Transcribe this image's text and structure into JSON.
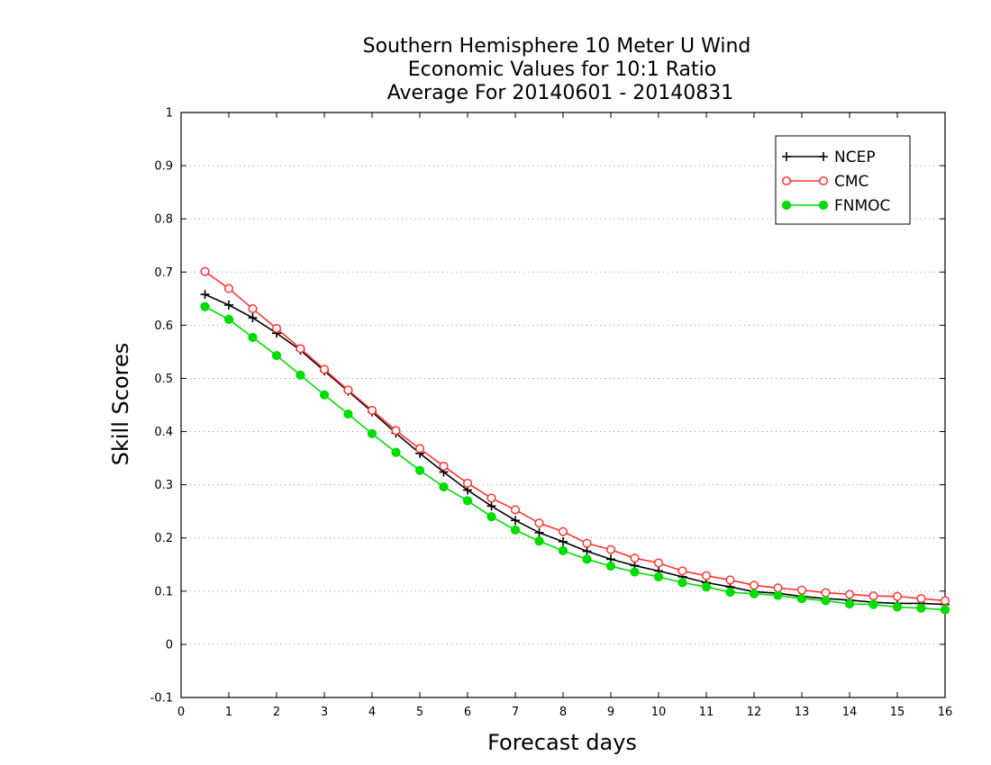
{
  "chart_data": {
    "type": "line",
    "title": [
      "Southern Hemisphere 10 Meter U Wind",
      "Economic Values for 10:1 Ratio",
      "Average For 20140601 - 20140831"
    ],
    "xlabel": "Forecast days",
    "ylabel": "Skill Scores",
    "xlim": [
      0,
      16
    ],
    "ylim": [
      -0.1,
      1
    ],
    "xticks": [
      "0",
      "1",
      "2",
      "3",
      "4",
      "5",
      "6",
      "7",
      "8",
      "9",
      "10",
      "11",
      "12",
      "13",
      "14",
      "15",
      "16"
    ],
    "yticks": [
      "-0.1",
      "0",
      "0.1",
      "0.2",
      "0.3",
      "0.4",
      "0.5",
      "0.6",
      "0.7",
      "0.8",
      "0.9",
      "1"
    ],
    "grid": "horizontal dotted",
    "legend_position": "top-right",
    "x": [
      0.5,
      1,
      1.5,
      2,
      2.5,
      3,
      3.5,
      4,
      4.5,
      5,
      5.5,
      6,
      6.5,
      7,
      7.5,
      8,
      8.5,
      9,
      9.5,
      10,
      10.5,
      11,
      11.5,
      12,
      12.5,
      13,
      13.5,
      14,
      14.5,
      15,
      15.5,
      16
    ],
    "series": [
      {
        "name": "NCEP",
        "color": "#000000",
        "marker": "plus",
        "values": [
          0.658,
          0.638,
          0.614,
          0.585,
          0.553,
          0.514,
          0.476,
          0.437,
          0.397,
          0.359,
          0.324,
          0.29,
          0.26,
          0.233,
          0.21,
          0.193,
          0.175,
          0.16,
          0.148,
          0.138,
          0.127,
          0.116,
          0.108,
          0.099,
          0.096,
          0.09,
          0.086,
          0.083,
          0.079,
          0.077,
          0.077,
          0.075
        ]
      },
      {
        "name": "CMC",
        "color": "#ff3333",
        "marker": "open-circle",
        "values": [
          0.701,
          0.669,
          0.631,
          0.594,
          0.556,
          0.517,
          0.478,
          0.44,
          0.402,
          0.368,
          0.335,
          0.303,
          0.275,
          0.253,
          0.228,
          0.212,
          0.19,
          0.178,
          0.162,
          0.153,
          0.138,
          0.129,
          0.121,
          0.111,
          0.106,
          0.102,
          0.097,
          0.094,
          0.091,
          0.09,
          0.086,
          0.082
        ]
      },
      {
        "name": "FNMOC",
        "color": "#00dd00",
        "marker": "filled-circle",
        "values": [
          0.635,
          0.611,
          0.577,
          0.543,
          0.506,
          0.469,
          0.433,
          0.396,
          0.361,
          0.327,
          0.296,
          0.27,
          0.24,
          0.215,
          0.194,
          0.176,
          0.16,
          0.147,
          0.136,
          0.127,
          0.116,
          0.108,
          0.098,
          0.095,
          0.092,
          0.086,
          0.082,
          0.076,
          0.075,
          0.07,
          0.068,
          0.065
        ]
      }
    ]
  }
}
